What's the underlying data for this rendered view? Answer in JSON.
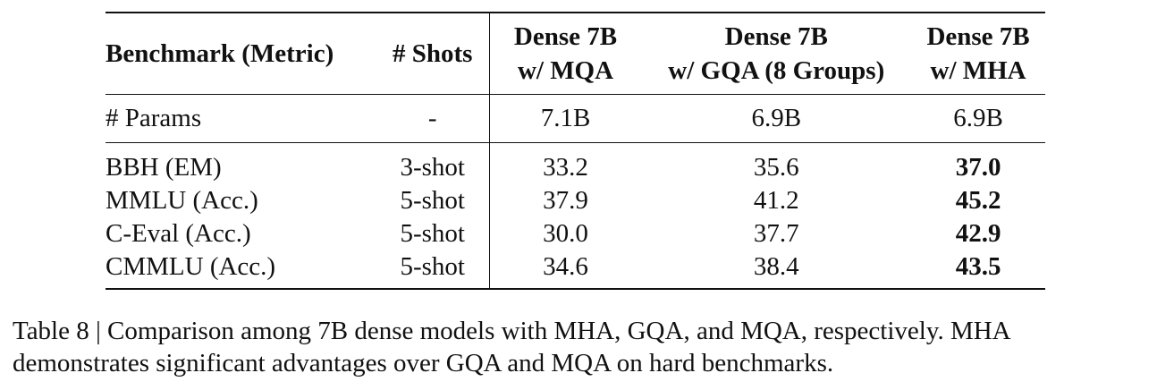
{
  "table": {
    "columns": {
      "benchmark": "Benchmark (Metric)",
      "shots": "# Shots",
      "mqa_line1": "Dense 7B",
      "mqa_line2": "w/ MQA",
      "gqa_line1": "Dense 7B",
      "gqa_line2": "w/ GQA (8 Groups)",
      "mha_line1": "Dense 7B",
      "mha_line2": "w/ MHA"
    },
    "params_row": {
      "label": "# Params",
      "shots": "-",
      "mqa": "7.1B",
      "gqa": "6.9B",
      "mha": "6.9B"
    },
    "rows": [
      {
        "benchmark": "BBH (EM)",
        "shots": "3-shot",
        "mqa": "33.2",
        "gqa": "35.6",
        "mha": "37.0"
      },
      {
        "benchmark": "MMLU (Acc.)",
        "shots": "5-shot",
        "mqa": "37.9",
        "gqa": "41.2",
        "mha": "45.2"
      },
      {
        "benchmark": "C-Eval (Acc.)",
        "shots": "5-shot",
        "mqa": "30.0",
        "gqa": "37.7",
        "mha": "42.9"
      },
      {
        "benchmark": "CMMLU (Acc.)",
        "shots": "5-shot",
        "mqa": "34.6",
        "gqa": "38.4",
        "mha": "43.5"
      }
    ]
  },
  "caption": {
    "text": "Table 8 | Comparison among 7B dense models with MHA, GQA, and MQA, respectively. MHA demonstrates significant advantages over GQA and MQA on hard benchmarks."
  }
}
